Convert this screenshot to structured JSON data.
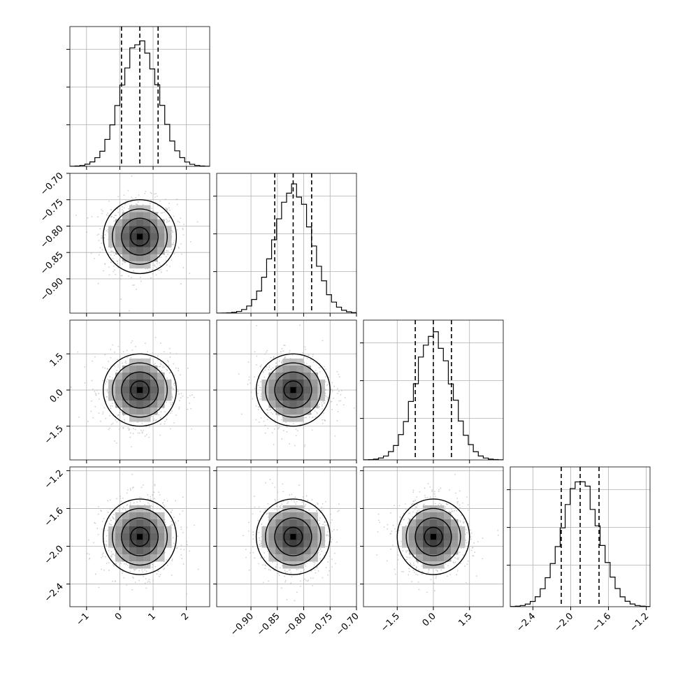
{
  "chart_data": {
    "type": "corner",
    "parameters": [
      {
        "index": 0,
        "median": 0.6,
        "q16": 0.05,
        "q84": 1.15,
        "sigma": 0.55,
        "range": [
          -1.5,
          2.7
        ],
        "ticks": [
          "−1",
          "0",
          "1",
          "2"
        ],
        "tick_values": [
          -1,
          0,
          1,
          2
        ]
      },
      {
        "index": 1,
        "median": -0.82,
        "q16": -0.855,
        "q84": -0.785,
        "sigma": 0.035,
        "range": [
          -0.965,
          -0.7
        ],
        "ticks": [
          "−0.90",
          "−0.85",
          "−0.80",
          "−0.75",
          "−0.70"
        ],
        "tick_values": [
          -0.9,
          -0.85,
          -0.8,
          -0.75,
          -0.7
        ]
      },
      {
        "index": 2,
        "median": 0.0,
        "q16": -0.75,
        "q84": 0.75,
        "sigma": 0.75,
        "range": [
          -2.9,
          2.9
        ],
        "ticks": [
          "−1.5",
          "0.0",
          "1.5"
        ],
        "tick_values": [
          -1.5,
          0.0,
          1.5
        ]
      },
      {
        "index": 3,
        "median": -1.9,
        "q16": -2.1,
        "q84": -1.7,
        "sigma": 0.2,
        "range": [
          -2.64,
          -1.16
        ],
        "ticks": [
          "−2.4",
          "−2.0",
          "−1.6",
          "−1.2"
        ],
        "tick_values": [
          -2.4,
          -2.0,
          -1.6,
          -1.2
        ]
      }
    ],
    "histogram_fill": "#ffffff",
    "line_color": "#000000",
    "point_color": "#bdbdbd",
    "grid": true,
    "quantile_lines": "dashed",
    "contour_levels": [
      0.5,
      1.0,
      1.5,
      2.0
    ]
  }
}
